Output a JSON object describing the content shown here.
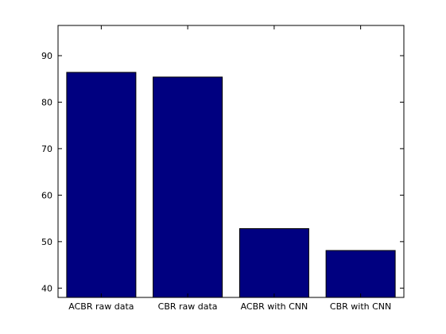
{
  "chart_data": {
    "type": "bar",
    "categories": [
      "ACBR raw data",
      "CBR raw data",
      "ACBR with CNN",
      "CBR with CNN"
    ],
    "values": [
      86.4,
      85.4,
      52.8,
      48.1
    ],
    "yticks": [
      "40",
      "50",
      "60",
      "70",
      "80",
      "90"
    ],
    "ylim": [
      38,
      96.5
    ],
    "title": "",
    "xlabel": "",
    "ylabel": "",
    "grid": false,
    "bar_color": "#000080",
    "bar_edge_color": "#000000"
  }
}
